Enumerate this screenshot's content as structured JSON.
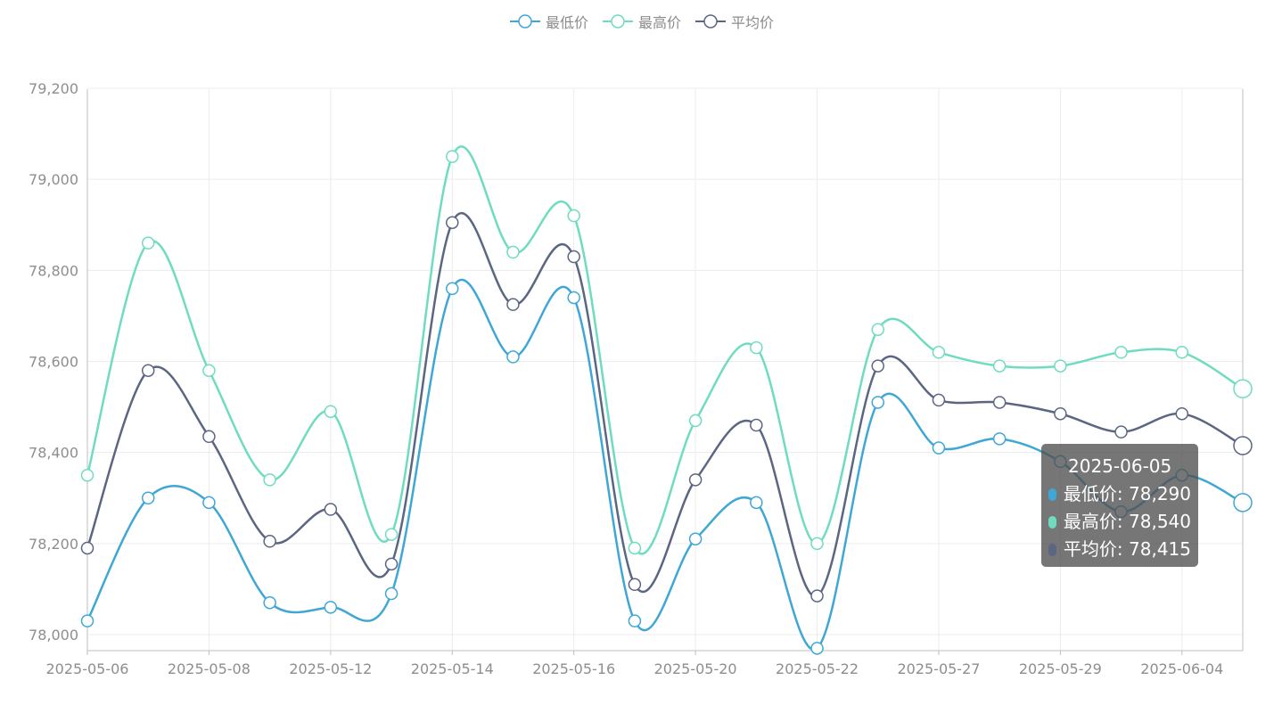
{
  "chart_data": {
    "type": "line",
    "smooth": true,
    "x": [
      "2025-05-06",
      "2025-05-07",
      "2025-05-08",
      "2025-05-09",
      "2025-05-12",
      "2025-05-13",
      "2025-05-14",
      "2025-05-15",
      "2025-05-16",
      "2025-05-19",
      "2025-05-20",
      "2025-05-21",
      "2025-05-22",
      "2025-05-23",
      "2025-05-27",
      "2025-05-28",
      "2025-05-29",
      "2025-05-30",
      "2025-06-04",
      "2025-06-05"
    ],
    "xtick_labels": [
      "2025-05-06",
      "2025-05-08",
      "2025-05-12",
      "2025-05-14",
      "2025-05-16",
      "2025-05-20",
      "2025-05-22",
      "2025-05-27",
      "2025-05-29",
      "2025-06-04"
    ],
    "series": [
      {
        "name": "最低价",
        "color": "#3fa7d6",
        "values": [
          78030,
          78300,
          78290,
          78070,
          78060,
          78090,
          78760,
          78610,
          78740,
          78030,
          78210,
          78290,
          77970,
          78510,
          78410,
          78430,
          78380,
          78270,
          78350,
          78290
        ]
      },
      {
        "name": "最高价",
        "color": "#6fdcc0",
        "values": [
          78350,
          78860,
          78580,
          78340,
          78490,
          78220,
          79050,
          78840,
          78920,
          78190,
          78470,
          78630,
          78200,
          78670,
          78620,
          78590,
          78590,
          78620,
          78620,
          78540
        ]
      },
      {
        "name": "平均价",
        "color": "#5b6682",
        "values": [
          78190,
          78580,
          78435,
          78205,
          78275,
          78155,
          78905,
          78725,
          78830,
          78110,
          78340,
          78460,
          78085,
          78590,
          78515,
          78510,
          78485,
          78445,
          78485,
          78415
        ]
      }
    ],
    "yticks": [
      "78,000",
      "78,200",
      "78,400",
      "78,600",
      "78,800",
      "79,000",
      "79,200"
    ],
    "ylim": [
      78000,
      79200
    ],
    "grid": true,
    "legend_position": "top-center",
    "tooltip": {
      "date": "2025-06-05",
      "rows": [
        {
          "label": "最低价: 78,290",
          "color": "#3fa7d6"
        },
        {
          "label": "最高价: 78,540",
          "color": "#6fdcc0"
        },
        {
          "label": "平均价: 78,415",
          "color": "#5b6682"
        }
      ]
    }
  }
}
